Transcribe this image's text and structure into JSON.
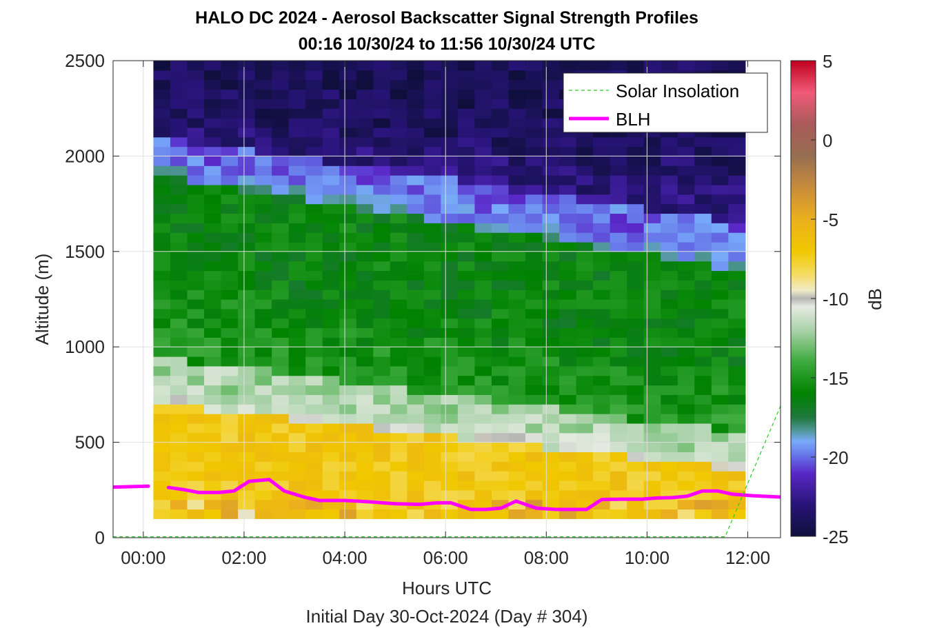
{
  "chart_data": {
    "type": "heatmap",
    "title": "HALO DC 2024 - Aerosol Backscatter Signal Strength Profiles",
    "subtitle": "00:16 10/30/24 to 11:56 10/30/24  UTC",
    "xlabel": "Hours UTC",
    "xlabel2": "Initial Day 30-Oct-2024 (Day # 304)",
    "ylabel": "Altitude (m)",
    "colorbar_label": "dB",
    "xlim": [
      -0.6,
      12.65
    ],
    "ylim": [
      0,
      2500
    ],
    "clim": [
      -25,
      5
    ],
    "x_ticks": [
      {
        "value": 0,
        "label": "00:00"
      },
      {
        "value": 2,
        "label": "02:00"
      },
      {
        "value": 4,
        "label": "04:00"
      },
      {
        "value": 6,
        "label": "06:00"
      },
      {
        "value": 8,
        "label": "08:00"
      },
      {
        "value": 10,
        "label": "10:00"
      },
      {
        "value": 12,
        "label": "12:00"
      }
    ],
    "y_ticks": [
      {
        "value": 0,
        "label": "0"
      },
      {
        "value": 500,
        "label": "500"
      },
      {
        "value": 1000,
        "label": "1000"
      },
      {
        "value": 1500,
        "label": "1500"
      },
      {
        "value": 2000,
        "label": "2000"
      },
      {
        "value": 2500,
        "label": "2500"
      }
    ],
    "colorbar_ticks": [
      {
        "value": 5,
        "label": "5"
      },
      {
        "value": 0,
        "label": "0"
      },
      {
        "value": -5,
        "label": "-5"
      },
      {
        "value": -10,
        "label": "-10"
      },
      {
        "value": -15,
        "label": "-15"
      },
      {
        "value": -20,
        "label": "-20"
      },
      {
        "value": -25,
        "label": "-25"
      }
    ],
    "grid": true,
    "legend": {
      "position": "top-right",
      "entries": [
        {
          "label": "Solar Insolation",
          "color": "#22cc22",
          "style": "dashed"
        },
        {
          "label": "BLH",
          "color": "#ff00ff",
          "style": "solid"
        }
      ]
    },
    "heatmap": {
      "x_start": 0.2,
      "x_end": 11.95,
      "y_start": 100,
      "y_end": 2500,
      "n_cols": 35,
      "n_rows": 48,
      "shape_note": "backscatter in dB; strong (-6 to -8) near surface, decreasing with altitude; boundary between aerosol layer and clean air descends from ~2000 m early to ~1500 m late",
      "layers": [
        {
          "altitude_top_early": 700,
          "altitude_top_late": 350,
          "value_db": -7
        },
        {
          "altitude_top_early": 950,
          "altitude_top_late": 550,
          "value_db": -12
        },
        {
          "altitude_top_early": 1900,
          "altitude_top_late": 1400,
          "value_db": -16
        },
        {
          "altitude_top_early": 2100,
          "altitude_top_late": 1650,
          "value_db": -20
        },
        {
          "altitude_top_early": 2500,
          "altitude_top_late": 2500,
          "value_db": -24
        }
      ]
    },
    "series": [
      {
        "name": "BLH",
        "color": "#ff00ff",
        "x": [
          -0.6,
          0.1,
          0.5,
          0.8,
          1.1,
          1.5,
          1.8,
          2.1,
          2.5,
          2.8,
          3.2,
          3.5,
          4.0,
          4.5,
          5.0,
          5.5,
          5.8,
          6.1,
          6.5,
          6.8,
          7.1,
          7.4,
          7.8,
          8.2,
          8.6,
          8.8,
          9.1,
          9.5,
          9.9,
          10.2,
          10.5,
          10.8,
          11.1,
          11.4,
          11.7,
          12.1,
          12.65
        ],
        "y": [
          265,
          270,
          263,
          252,
          237,
          237,
          245,
          295,
          305,
          245,
          212,
          195,
          195,
          188,
          178,
          175,
          182,
          183,
          148,
          148,
          155,
          192,
          155,
          148,
          148,
          148,
          200,
          202,
          202,
          208,
          210,
          218,
          245,
          245,
          228,
          220,
          213
        ],
        "gap_after_x": 0.1
      },
      {
        "name": "Solar Insolation",
        "color": "#22cc22",
        "x": [
          -0.6,
          11.55,
          12.65
        ],
        "y": [
          5,
          5,
          690
        ]
      }
    ]
  }
}
